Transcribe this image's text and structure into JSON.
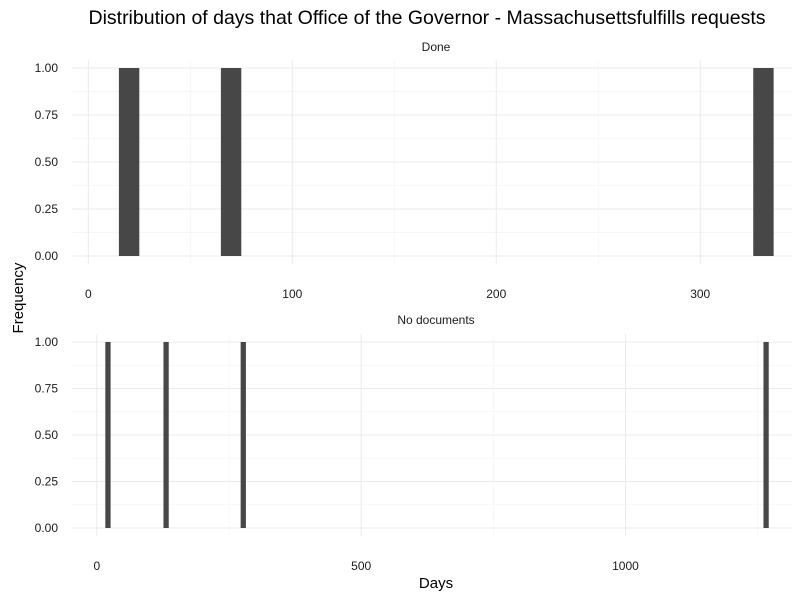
{
  "chart_data": {
    "type": "bar",
    "title": "Distribution of days that Office of the Governor - Massachusettsfulfills requests",
    "xlabel": "Days",
    "ylabel": "Frequency",
    "bar_color": "#474747",
    "grid": true,
    "panels": [
      {
        "name": "Done",
        "xlim": [
          -8,
          345
        ],
        "ylim": [
          0,
          1.0
        ],
        "x_ticks": [
          0,
          100,
          200,
          300
        ],
        "x_tick_labels": [
          "0",
          "100",
          "200",
          "300"
        ],
        "y_ticks": [
          0,
          0.25,
          0.5,
          0.75,
          1.0
        ],
        "y_tick_labels": [
          "0.00",
          "0.25",
          "0.50",
          "0.75",
          "1.00"
        ],
        "bins": [
          {
            "x0": 15,
            "x1": 25,
            "count": 1
          },
          {
            "x0": 65,
            "x1": 75,
            "count": 1
          },
          {
            "x0": 326,
            "x1": 336,
            "count": 1
          }
        ]
      },
      {
        "name": "No documents",
        "xlim": [
          -47,
          1315
        ],
        "ylim": [
          0,
          1.0
        ],
        "x_ticks": [
          0,
          500,
          1000
        ],
        "x_tick_labels": [
          "0",
          "500",
          "1000"
        ],
        "y_ticks": [
          0,
          0.25,
          0.5,
          0.75,
          1.0
        ],
        "y_tick_labels": [
          "0.00",
          "0.25",
          "0.50",
          "0.75",
          "1.00"
        ],
        "bins": [
          {
            "x0": 16,
            "x1": 26,
            "count": 1
          },
          {
            "x0": 126,
            "x1": 136,
            "count": 1
          },
          {
            "x0": 272,
            "x1": 282,
            "count": 1
          },
          {
            "x0": 1261,
            "x1": 1271,
            "count": 1
          }
        ]
      }
    ]
  }
}
